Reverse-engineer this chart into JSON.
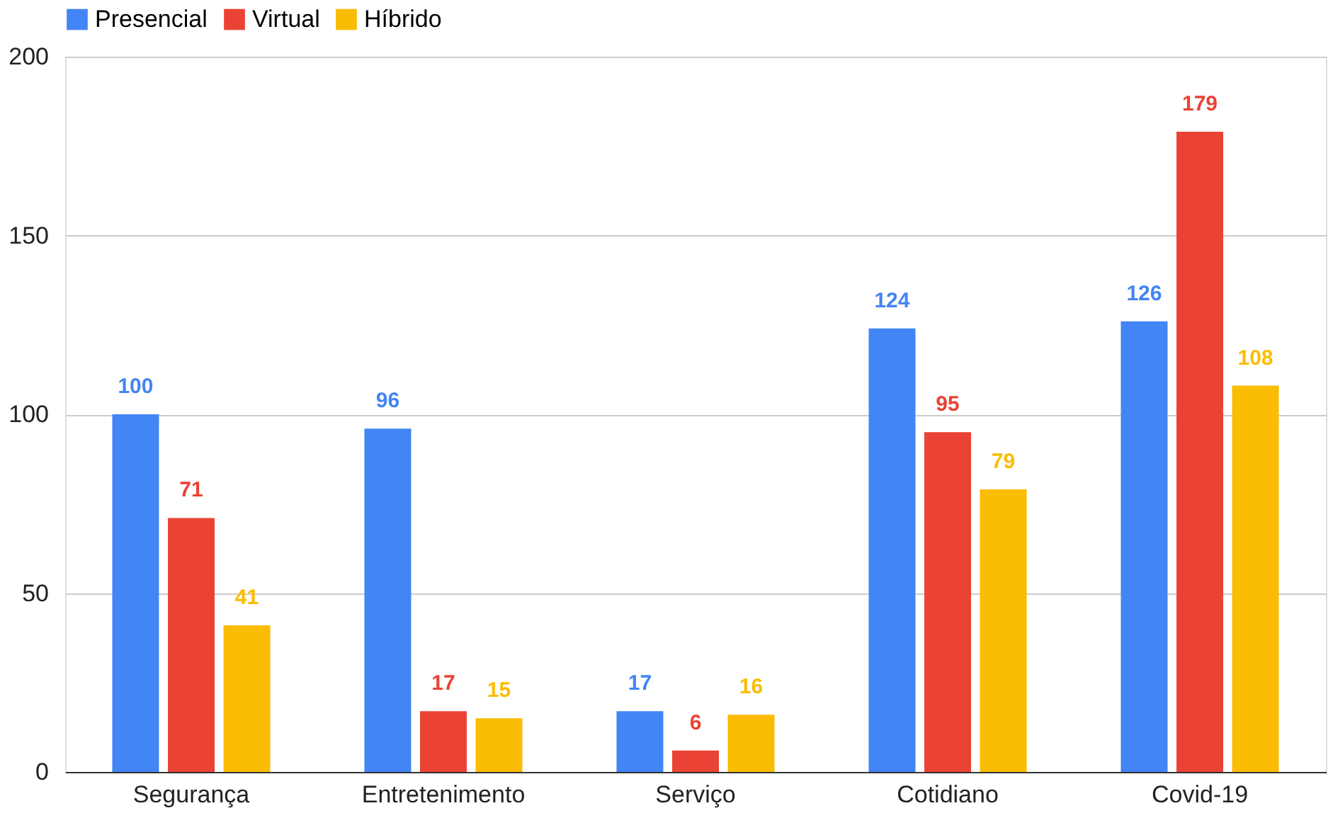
{
  "chart_data": {
    "type": "bar",
    "categories": [
      "Segurança",
      "Entretenimento",
      "Serviço",
      "Cotidiano",
      "Covid-19"
    ],
    "series": [
      {
        "name": "Presencial",
        "color": "#4285f4",
        "values": [
          100,
          96,
          17,
          124,
          126
        ]
      },
      {
        "name": "Virtual",
        "color": "#ea4335",
        "values": [
          71,
          17,
          6,
          95,
          179
        ]
      },
      {
        "name": "Híbrido",
        "color": "#fbbc04",
        "values": [
          41,
          15,
          16,
          79,
          108
        ]
      }
    ],
    "ylim": [
      0,
      200
    ],
    "yticks": [
      0,
      50,
      100,
      150,
      200
    ],
    "grid": "y",
    "legend": "top",
    "data_labels": true
  }
}
